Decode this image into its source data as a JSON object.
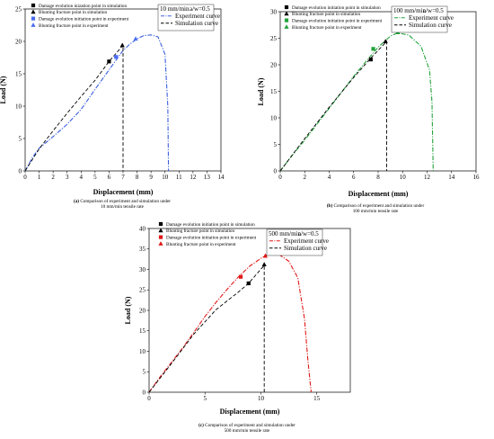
{
  "chart_data": [
    {
      "type": "line",
      "panel_label": "(a)",
      "caption_lines": [
        "Comparison of experiment and simulation under",
        "10 mm/min tensile rate"
      ],
      "rate_label": "10 mm/min",
      "ratio_label": "a/w=0.5",
      "xlabel": "Displacement (mm)",
      "ylabel": "Load (N)",
      "xlim": [
        0,
        14
      ],
      "ylim": [
        0,
        25
      ],
      "xticks": [
        "0",
        "1",
        "2",
        "3",
        "4",
        "5",
        "6",
        "7",
        "8",
        "9",
        "10",
        "11",
        "12",
        "13",
        "14"
      ],
      "yticks": [
        "0",
        "5",
        "10",
        "15",
        "20",
        "25"
      ],
      "color": "#3b5fe0",
      "series": [
        {
          "name": "Experiment curve",
          "style": "dashdot",
          "x": [
            0,
            0.5,
            1,
            1.5,
            2,
            3,
            4,
            5,
            6,
            7,
            7.5,
            8,
            8.5,
            9,
            9.5,
            10,
            10.2,
            10.25
          ],
          "y": [
            0,
            2.0,
            3.5,
            4.4,
            5.3,
            7.2,
            9.5,
            12.6,
            15.6,
            18.6,
            19.6,
            20.4,
            20.9,
            21.0,
            20.7,
            18.0,
            10.0,
            0
          ]
        },
        {
          "name": "Simulation curve",
          "style": "dashed",
          "x": [
            0,
            1,
            2,
            3,
            4,
            5,
            6,
            7,
            7,
            7
          ],
          "y": [
            0,
            3.4,
            6.2,
            8.9,
            11.5,
            14.0,
            16.9,
            19.4,
            10.0,
            0
          ]
        }
      ],
      "markers": [
        {
          "name": "Damage evolution inization point in simulation",
          "shape": "square",
          "color": "#000000",
          "x": 6.0,
          "y": 16.9
        },
        {
          "name": "Blunting fracture point in simulation",
          "shape": "triangle",
          "color": "#000000",
          "x": 6.95,
          "y": 19.4
        },
        {
          "name": "Damage evolution initiation point in experiment",
          "shape": "square",
          "color": "#4a6cf0",
          "x": 6.5,
          "y": 17.6
        },
        {
          "name": "Blunting fracture point in experiment",
          "shape": "triangle",
          "color": "#4a6cf0",
          "x": 7.9,
          "y": 20.4
        }
      ]
    },
    {
      "type": "line",
      "panel_label": "(b)",
      "caption_lines": [
        "Comparison of experiment and simulation under",
        "100 mm/min tensile rate"
      ],
      "rate_label": "100 mm/min",
      "ratio_label": "a/w=0.5",
      "xlabel": "Displacement (mm)",
      "ylabel": "Load (N)",
      "xlim": [
        0,
        16
      ],
      "ylim": [
        0,
        30
      ],
      "xticks": [
        "0",
        "2",
        "4",
        "6",
        "8",
        "10",
        "12",
        "14",
        "16"
      ],
      "yticks": [
        "0",
        "5",
        "10",
        "15",
        "20",
        "25",
        "30"
      ],
      "color": "#22a23a",
      "series": [
        {
          "name": "Experiment curve",
          "style": "dashdot",
          "x": [
            0,
            1,
            2,
            3,
            4,
            5,
            6,
            7,
            8,
            9,
            9.6,
            10.5,
            11.5,
            12.2,
            12.4,
            12.5
          ],
          "y": [
            0,
            3.0,
            5.8,
            8.8,
            11.8,
            14.8,
            17.8,
            20.6,
            23.3,
            25.4,
            26.0,
            25.6,
            23.5,
            19.0,
            13.0,
            0
          ]
        },
        {
          "name": "Simulation curve",
          "style": "dashed",
          "x": [
            0,
            2,
            4,
            6,
            7.5,
            8.7,
            8.7,
            8.7
          ],
          "y": [
            0,
            6.1,
            12.0,
            17.6,
            21.5,
            24.4,
            12.0,
            0
          ]
        }
      ],
      "markers": [
        {
          "name": "Damage evolution initiation point in simulation",
          "shape": "square",
          "color": "#000000",
          "x": 7.4,
          "y": 21.0
        },
        {
          "name": "Blunting fracture point in simulation",
          "shape": "triangle",
          "color": "#000000",
          "x": 8.6,
          "y": 24.4
        },
        {
          "name": "Damage evolution initiation point in experiment",
          "shape": "square",
          "color": "#22a23a",
          "x": 7.6,
          "y": 23.0
        },
        {
          "name": "Blunting fracture point in experiment",
          "shape": "triangle",
          "color": "#22a23a",
          "x": 9.6,
          "y": 26.1
        }
      ]
    },
    {
      "type": "line",
      "panel_label": "(c)",
      "caption_lines": [
        "Comparison of experiment and simulation under",
        "500 mm/min tensile rate"
      ],
      "rate_label": "500 mm/min",
      "ratio_label": "a/w=0.5",
      "xlabel": "Displacement (mm)",
      "ylabel": "Load (N)",
      "xlim": [
        0,
        18
      ],
      "ylim": [
        0,
        40
      ],
      "xticks": [
        "0",
        "5",
        "10",
        "15"
      ],
      "yticks": [
        "0",
        "5",
        "10",
        "15",
        "20",
        "25",
        "30",
        "35",
        "40"
      ],
      "color": "#e01818",
      "series": [
        {
          "name": "Experiment curve",
          "style": "dashdot",
          "x": [
            0,
            1,
            2,
            3,
            4,
            5,
            6,
            7,
            8,
            9,
            10,
            10.5,
            11.5,
            12.5,
            13.3,
            13.9,
            14.2,
            14.5
          ],
          "y": [
            0,
            3.8,
            7.3,
            10.8,
            14.6,
            18.5,
            22.0,
            25.2,
            28.2,
            30.8,
            32.7,
            33.5,
            33.9,
            32.0,
            28.0,
            18.0,
            8.0,
            0
          ]
        },
        {
          "name": "Simulation curve",
          "style": "dashed",
          "x": [
            0,
            2,
            4,
            6,
            8,
            8.9,
            10.3,
            10.3,
            10.3
          ],
          "y": [
            0,
            7.0,
            14.2,
            20.2,
            24.5,
            26.6,
            31.0,
            15.0,
            0
          ]
        }
      ],
      "markers": [
        {
          "name": "Damage evolution initiation point in simulation",
          "shape": "square",
          "color": "#000000",
          "x": 8.9,
          "y": 26.6
        },
        {
          "name": "Blunting fracture point in simulation",
          "shape": "triangle",
          "color": "#000000",
          "x": 10.3,
          "y": 31.2
        },
        {
          "name": "Damage evolution initiation point in experiment",
          "shape": "square",
          "color": "#e01818",
          "x": 8.2,
          "y": 28.2
        },
        {
          "name": "Blunting fracture point in experiment",
          "shape": "triangle",
          "color": "#e01818",
          "x": 10.4,
          "y": 33.3
        }
      ]
    }
  ]
}
